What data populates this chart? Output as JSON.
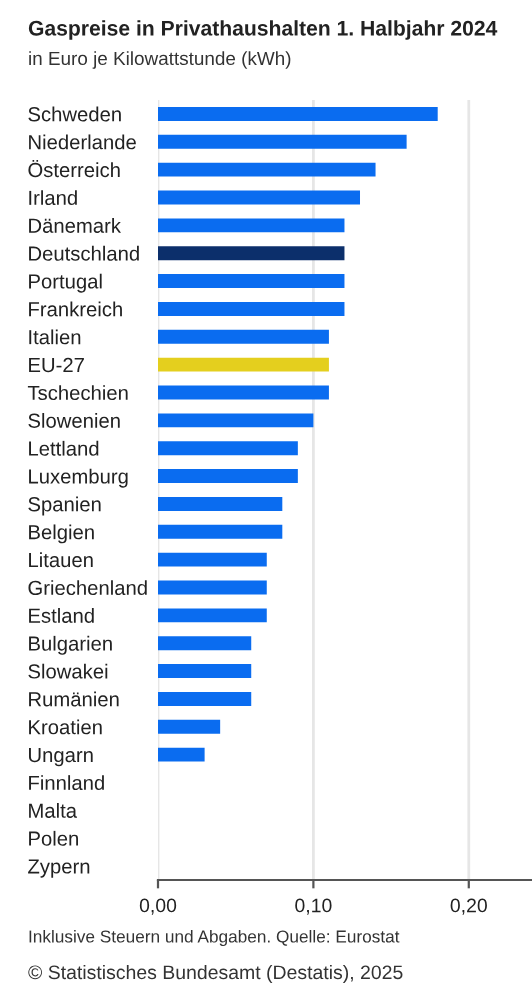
{
  "chart_data": {
    "type": "bar",
    "orientation": "horizontal",
    "title": "Gaspreise in Privathaushalten 1. Halbjahr 2024",
    "subtitle": "in Euro je Kilowattstunde (kWh)",
    "categories": [
      "Schweden",
      "Niederlande",
      "Österreich",
      "Irland",
      "Dänemark",
      "Deutschland",
      "Portugal",
      "Frankreich",
      "Italien",
      "EU-27",
      "Tschechien",
      "Slowenien",
      "Lettland",
      "Luxemburg",
      "Spanien",
      "Belgien",
      "Litauen",
      "Griechenland",
      "Estland",
      "Bulgarien",
      "Slowakei",
      "Rumänien",
      "Kroatien",
      "Ungarn",
      "Finnland",
      "Malta",
      "Polen",
      "Zypern"
    ],
    "values": [
      0.18,
      0.16,
      0.14,
      0.13,
      0.12,
      0.12,
      0.12,
      0.12,
      0.11,
      0.11,
      0.11,
      0.1,
      0.09,
      0.09,
      0.08,
      0.08,
      0.07,
      0.07,
      0.07,
      0.06,
      0.06,
      0.06,
      0.04,
      0.03,
      null,
      null,
      null,
      null
    ],
    "colors": [
      "#0a6cf0",
      "#0a6cf0",
      "#0a6cf0",
      "#0a6cf0",
      "#0a6cf0",
      "#0c2f6b",
      "#0a6cf0",
      "#0a6cf0",
      "#0a6cf0",
      "#e4cf1e",
      "#0a6cf0",
      "#0a6cf0",
      "#0a6cf0",
      "#0a6cf0",
      "#0a6cf0",
      "#0a6cf0",
      "#0a6cf0",
      "#0a6cf0",
      "#0a6cf0",
      "#0a6cf0",
      "#0a6cf0",
      "#0a6cf0",
      "#0a6cf0",
      "#0a6cf0",
      "#0a6cf0",
      "#0a6cf0",
      "#0a6cf0",
      "#0a6cf0"
    ],
    "xlim": [
      0,
      0.24
    ],
    "xticks": [
      {
        "value": 0,
        "label": "0,00"
      },
      {
        "value": 0.1,
        "label": "0,10"
      },
      {
        "value": 0.2,
        "label": "0,20"
      }
    ],
    "grid": "x",
    "annotations": [
      "Inklusive Steuern und Abgaben. Quelle: Eurostat",
      "© Statistisches Bundesamt (Destatis), 2025"
    ]
  }
}
